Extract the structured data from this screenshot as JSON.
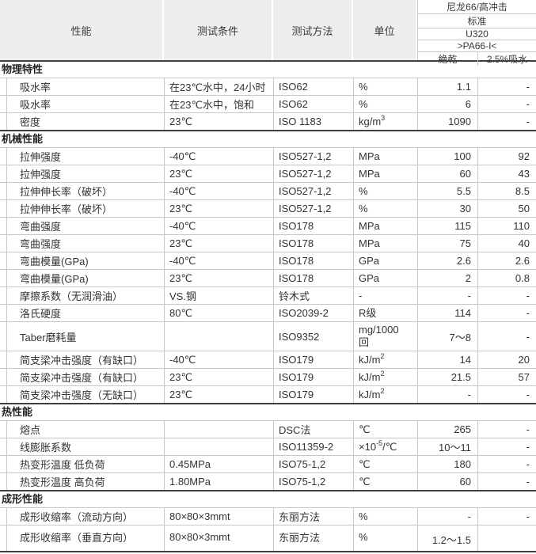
{
  "colors": {
    "header_bg": "#eeeeee",
    "border_light": "#c8c8c8",
    "border_dark": "#3f3f3f",
    "text": "#333333"
  },
  "table_header": {
    "property": "性能",
    "condition": "测试条件",
    "method": "测试方法",
    "unit": "单位",
    "grade": {
      "family": "尼龙66/高冲击",
      "type": "标准",
      "name": "U320",
      "code": ">PA66-I<",
      "state_dry": "絶乾",
      "state_wet": "2.5%吸水"
    }
  },
  "sections": [
    {
      "title": "物理特性",
      "rows": [
        {
          "property": "吸水率",
          "condition": "在23℃水中，24小时",
          "method": "ISO62",
          "unit": [
            {
              "t": "%"
            }
          ],
          "dry": "1.1",
          "wet": "-"
        },
        {
          "property": "吸水率",
          "condition": "在23℃水中，饱和",
          "method": "ISO62",
          "unit": [
            {
              "t": "%"
            }
          ],
          "dry": "6",
          "wet": "-"
        },
        {
          "property": "密度",
          "condition": "23℃",
          "method": "ISO 1183",
          "unit": [
            {
              "t": "kg/m"
            },
            {
              "s": "3"
            }
          ],
          "dry": "1090",
          "wet": "-"
        }
      ]
    },
    {
      "title": "机械性能",
      "rows": [
        {
          "property": "拉伸强度",
          "condition": "-40℃",
          "method": "ISO527-1,2",
          "unit": [
            {
              "t": "MPa"
            }
          ],
          "dry": "100",
          "wet": "92"
        },
        {
          "property": "拉伸强度",
          "condition": "23℃",
          "method": "ISO527-1,2",
          "unit": [
            {
              "t": "MPa"
            }
          ],
          "dry": "60",
          "wet": "43"
        },
        {
          "property": "拉伸伸长率（破坏）",
          "condition": "-40℃",
          "method": "ISO527-1,2",
          "unit": [
            {
              "t": "%"
            }
          ],
          "dry": "5.5",
          "wet": "8.5"
        },
        {
          "property": "拉伸伸长率（破坏）",
          "condition": "23℃",
          "method": "ISO527-1,2",
          "unit": [
            {
              "t": "%"
            }
          ],
          "dry": "30",
          "wet": "50"
        },
        {
          "property": "弯曲强度",
          "condition": "-40℃",
          "method": "ISO178",
          "unit": [
            {
              "t": "MPa"
            }
          ],
          "dry": "115",
          "wet": "110"
        },
        {
          "property": "弯曲强度",
          "condition": "23℃",
          "method": "ISO178",
          "unit": [
            {
              "t": "MPa"
            }
          ],
          "dry": "75",
          "wet": "40"
        },
        {
          "property": "弯曲模量(GPa)",
          "condition": "-40℃",
          "method": "ISO178",
          "unit": [
            {
              "t": "GPa"
            }
          ],
          "dry": "2.6",
          "wet": "2.6"
        },
        {
          "property": "弯曲模量(GPa)",
          "condition": "23℃",
          "method": "ISO178",
          "unit": [
            {
              "t": "GPa"
            }
          ],
          "dry": "2",
          "wet": "0.8"
        },
        {
          "property": "摩擦系数（无润滑油）",
          "condition": "VS.钢",
          "method": "铃木式",
          "unit": [
            {
              "t": "-"
            }
          ],
          "dry": "-",
          "wet": "-"
        },
        {
          "property": "洛氏硬度",
          "condition": "80℃",
          "method": "ISO2039-2",
          "unit": [
            {
              "t": "R级"
            }
          ],
          "dry": "114",
          "wet": "-"
        },
        {
          "property": "Taber磨耗量",
          "condition": "",
          "method": "ISO9352",
          "unit": [
            {
              "t": "mg/1000"
            },
            {
              "br": true
            },
            {
              "t": "回"
            }
          ],
          "dry": "7〜8",
          "wet": "-",
          "tall": true
        },
        {
          "property": "简支梁冲击强度（有缺口）",
          "condition": "-40℃",
          "method": "ISO179",
          "unit": [
            {
              "t": "kJ/m"
            },
            {
              "s": "2"
            }
          ],
          "dry": "14",
          "wet": "20"
        },
        {
          "property": "简支梁冲击强度（有缺口）",
          "condition": "23℃",
          "method": "ISO179",
          "unit": [
            {
              "t": "kJ/m"
            },
            {
              "s": "2"
            }
          ],
          "dry": "21.5",
          "wet": "57"
        },
        {
          "property": "简支梁冲击强度（无缺口）",
          "condition": "23℃",
          "method": "ISO179",
          "unit": [
            {
              "t": "kJ/m"
            },
            {
              "s": "2"
            }
          ],
          "dry": "-",
          "wet": "-"
        }
      ]
    },
    {
      "title": "热性能",
      "rows": [
        {
          "property": "熔点",
          "condition": "",
          "method": "DSC法",
          "unit": [
            {
              "t": "℃"
            }
          ],
          "dry": "265",
          "wet": "-"
        },
        {
          "property": "线膨胀系数",
          "condition": "",
          "method": "ISO11359-2",
          "unit": [
            {
              "t": "×10"
            },
            {
              "s": "-5"
            },
            {
              "t": "/℃"
            }
          ],
          "dry": "10〜11",
          "wet": "-"
        },
        {
          "property": "热变形温度 低负荷",
          "condition": "0.45MPa",
          "method": "ISO75-1,2",
          "unit": [
            {
              "t": "℃"
            }
          ],
          "dry": "180",
          "wet": "-"
        },
        {
          "property": "热变形温度 高负荷",
          "condition": "1.80MPa",
          "method": "ISO75-1,2",
          "unit": [
            {
              "t": "℃"
            }
          ],
          "dry": "60",
          "wet": "-"
        }
      ]
    },
    {
      "title": "成形性能",
      "rows": [
        {
          "property": "成形收缩率（流动方向）",
          "condition": "80×80×3mmt",
          "method": "东丽方法",
          "unit": [
            {
              "t": "%"
            }
          ],
          "dry": "-",
          "wet": "-"
        },
        {
          "property": "成形收缩率（垂直方向）",
          "condition": "80×80×3mmt",
          "method": "东丽方法",
          "unit": [
            {
              "t": "%"
            }
          ],
          "dry": "1.2〜1.5",
          "wet": "",
          "tall_last": true
        }
      ]
    }
  ]
}
